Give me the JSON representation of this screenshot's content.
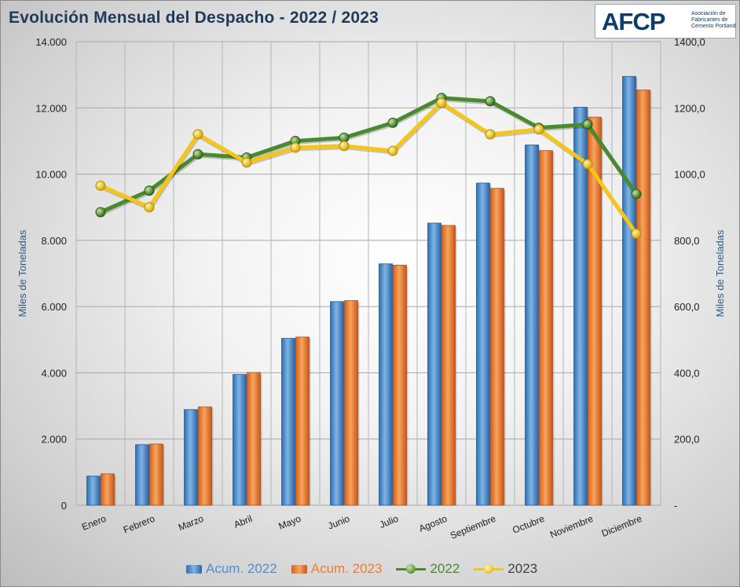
{
  "header": {
    "title": "Evolución Mensual del Despacho - 2022 / 2023",
    "logo_text": "AFCP",
    "logo_subtitle": "Asociación de Fabricantes de Cemento Portland"
  },
  "colors": {
    "acum_2022": "#4f90d0",
    "acum_2023": "#ef7d2e",
    "line_2022": "#4a8a2e",
    "line_2023": "#f5c518",
    "title": "#1f3a5a",
    "axis_title": "#2f5c85"
  },
  "chart_data": {
    "type": "bar",
    "title": "Evolución Mensual del Despacho - 2022 / 2023",
    "categories": [
      "Enero",
      "Febrero",
      "Marzo",
      "Abril",
      "Mayo",
      "Junio",
      "Julio",
      "Agosto",
      "Septiembre",
      "Octubre",
      "Noviembre",
      "Diciembre"
    ],
    "ylabel_left": "Miles de Toneladas",
    "ylabel_right": "Miles de Toneladas",
    "ylim_left": [
      0,
      14000
    ],
    "ylim_right": [
      0,
      1400
    ],
    "yticks_left": [
      "0",
      "2.000",
      "4.000",
      "6.000",
      "8.000",
      "10.000",
      "12.000",
      "14.000"
    ],
    "yticks_right": [
      "-",
      "200,0",
      "400,0",
      "600,0",
      "800,0",
      "1000,0",
      "1200,0",
      "1400,0"
    ],
    "grid": true,
    "legend_position": "bottom",
    "series": [
      {
        "name": "Acum. 2022",
        "type": "bar",
        "axis": "left",
        "values": [
          880,
          1830,
          2890,
          3950,
          5040,
          6150,
          7290,
          8520,
          9730,
          10880,
          12020,
          12950
        ]
      },
      {
        "name": "Acum. 2023",
        "type": "bar",
        "axis": "left",
        "values": [
          950,
          1850,
          2970,
          4010,
          5080,
          6180,
          7250,
          8450,
          9570,
          10710,
          11720,
          12540
        ]
      },
      {
        "name": "2022",
        "type": "line",
        "axis": "right",
        "values": [
          885,
          950,
          1060,
          1050,
          1100,
          1110,
          1155,
          1230,
          1220,
          1140,
          1150,
          940
        ]
      },
      {
        "name": "2023",
        "type": "line",
        "axis": "right",
        "values": [
          965,
          900,
          1120,
          1035,
          1080,
          1085,
          1070,
          1215,
          1120,
          1135,
          1030,
          820
        ]
      }
    ]
  }
}
